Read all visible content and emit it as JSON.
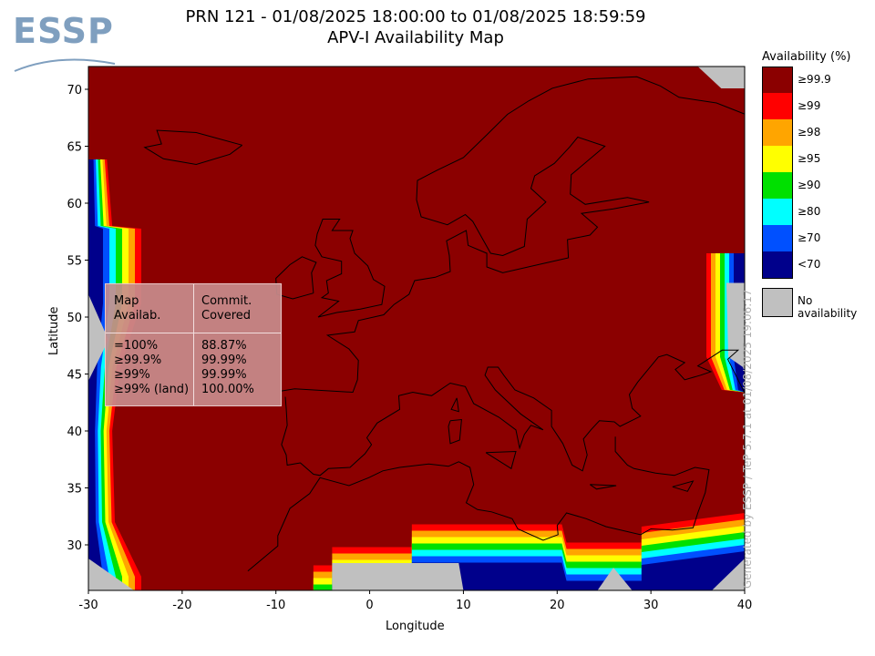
{
  "header": {
    "logo_text": "ESSP",
    "title_line1": "PRN 121 - 01/08/2025 18:00:00 to 01/08/2025 18:59:59",
    "title_line2": "APV-I Availability Map"
  },
  "chart_data": {
    "type": "heatmap",
    "title": "APV-I Availability Map",
    "xlabel": "Longitude",
    "ylabel": "Latitude",
    "xlim": [
      -30,
      40
    ],
    "ylim": [
      26,
      72
    ],
    "xticks": [
      "-30",
      "-20",
      "-10",
      "0",
      "10",
      "20",
      "30",
      "40"
    ],
    "yticks": [
      "30",
      "35",
      "40",
      "45",
      "50",
      "55",
      "60",
      "65",
      "70"
    ],
    "colorbar": {
      "title": "Availability (%)",
      "levels": [
        {
          "label": "≥99.9",
          "color": "#8b0000"
        },
        {
          "label": "≥99",
          "color": "#ff0000"
        },
        {
          "label": "≥98",
          "color": "#ffa500"
        },
        {
          "label": "≥95",
          "color": "#ffff00"
        },
        {
          "label": "≥90",
          "color": "#00e000"
        },
        {
          "label": "≥80",
          "color": "#00ffff"
        },
        {
          "label": "≥70",
          "color": "#0050ff"
        },
        {
          "label": "<70",
          "color": "#00008b"
        }
      ],
      "no_data": {
        "label": "No availability",
        "color": "#c0c0c0"
      }
    },
    "stats_table": {
      "headers": [
        "Map\nAvailab.",
        "Commit.\nCovered"
      ],
      "rows": [
        [
          "=100%",
          "88.87%"
        ],
        [
          "≥99.9%",
          "99.99%"
        ],
        [
          "≥99%",
          "99.99%"
        ],
        [
          "≥99% (land)",
          "100.00%"
        ]
      ]
    }
  },
  "footer": {
    "credit": "Generated by ESSP / TeP 5.7.1 at 01/08/2025 19:06:17"
  }
}
